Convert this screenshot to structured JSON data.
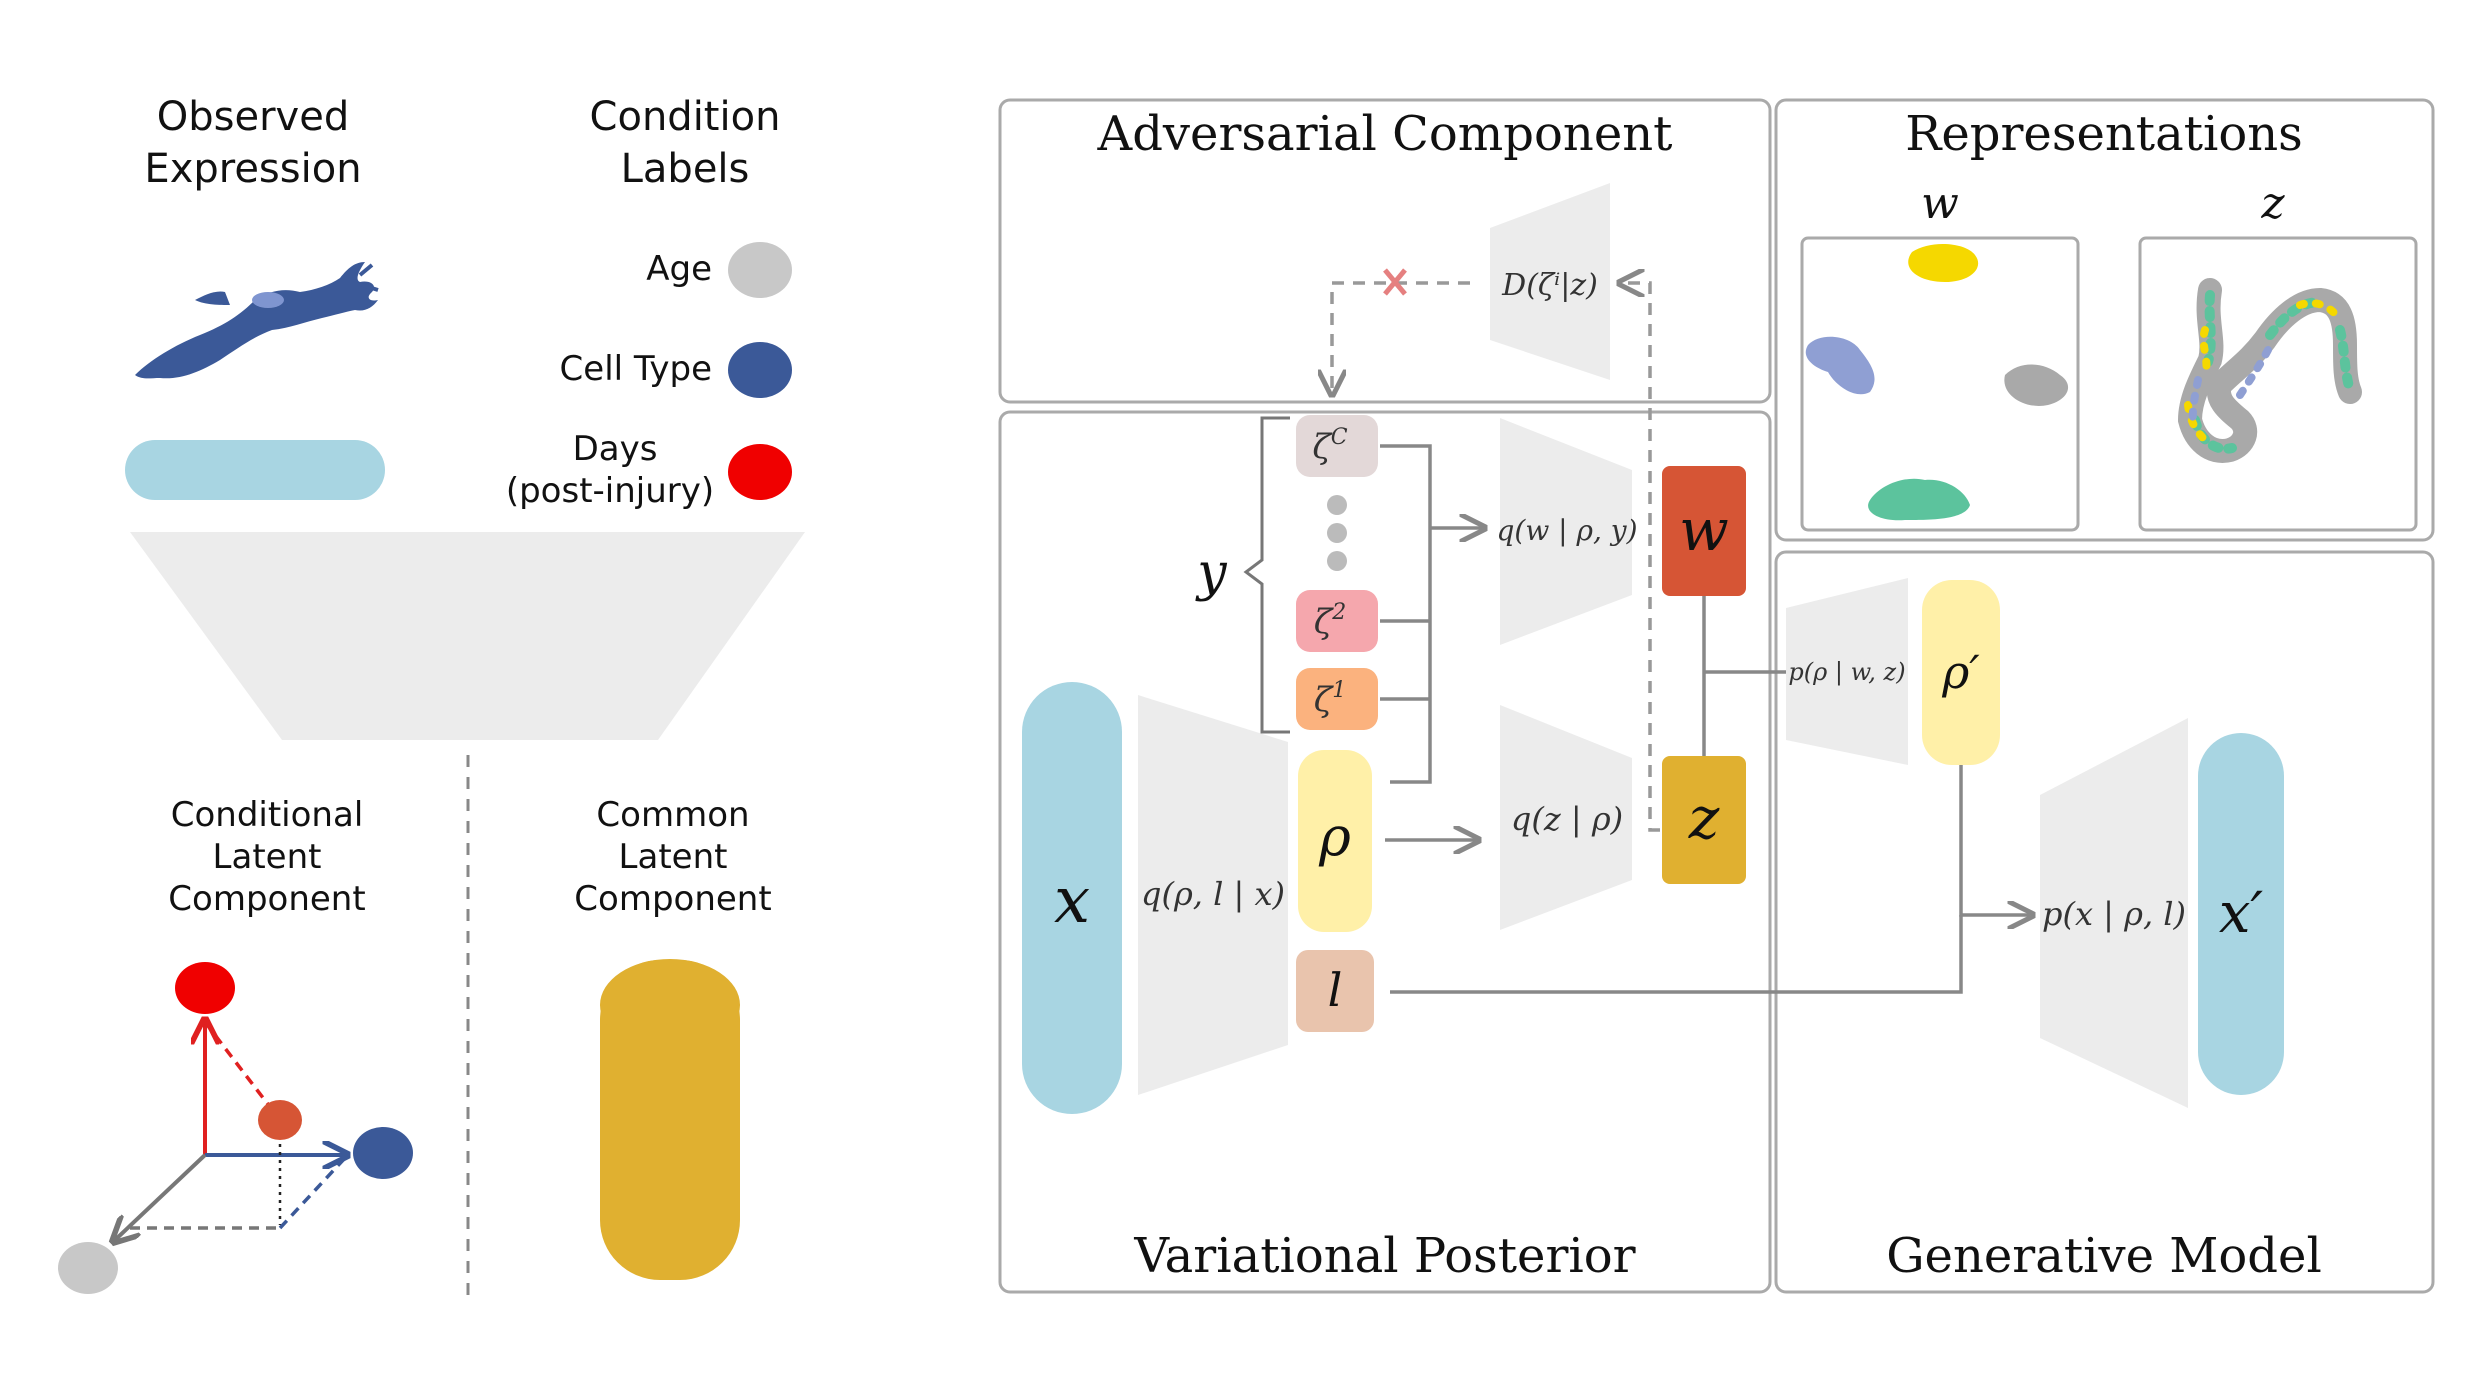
{
  "left_panel": {
    "observed_expression": [
      "Observed",
      "Expression"
    ],
    "condition_labels": [
      "Condition",
      "Labels"
    ],
    "legend": [
      {
        "label": "Age",
        "color": "#c8c8c8"
      },
      {
        "label": "Cell Type",
        "color": "#3b5998"
      },
      {
        "label": "Days",
        "label2": "(post-injury)",
        "color": "#f00000"
      }
    ],
    "conditional_latent": [
      "Conditional",
      "Latent",
      "Component"
    ],
    "common_latent": [
      "Common",
      "Latent",
      "Component"
    ]
  },
  "panels": {
    "adversarial": "Adversarial Component",
    "representations": "Representations",
    "variational": "Variational Posterior",
    "generative": "Generative Model"
  },
  "representations": {
    "w_label": "w",
    "z_label": "z"
  },
  "nodes": {
    "x": "x",
    "rho": "ρ",
    "l": "l",
    "w": "w",
    "z": "z",
    "rho_prime": "ρ′",
    "x_prime": "x′",
    "y": "y",
    "zeta_c": "ζ",
    "zeta_c_sup": "C",
    "zeta_2": "ζ",
    "zeta_2_sup": "2",
    "zeta_1": "ζ",
    "zeta_1_sup": "1"
  },
  "networks": {
    "encoder": "q(ρ, l | x)",
    "q_w": "q(w | ρ, y)",
    "q_z": "q(z | ρ)",
    "discriminator": "D(ζⁱ|z)",
    "p_rho": "p(ρ | w, z)",
    "p_x": "p(x | ρ, l)"
  },
  "colors": {
    "x_blue": "#a8d5e2",
    "rho_yellow": "#fff0a8",
    "l_tan": "#e9c4ad",
    "w_orange": "#d65535",
    "z_gold": "#e0b030",
    "zeta_c": "#e3d8d8",
    "zeta_2": "#f5a7ad",
    "zeta_1": "#fbb27e",
    "trapezoid": "#ececec",
    "cell_blue": "#3b5998",
    "cluster_yellow": "#f5d800",
    "cluster_blue": "#8f9fd3",
    "cluster_gray": "#a9a9a9",
    "cluster_green": "#5cc39d"
  }
}
